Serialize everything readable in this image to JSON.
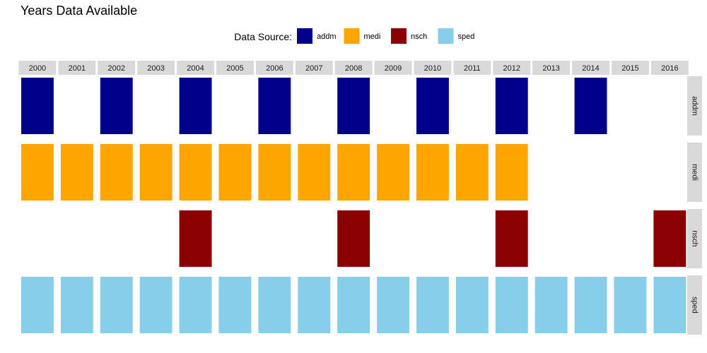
{
  "chart_data": {
    "type": "heatmap",
    "title": "Years Data Available",
    "legend": {
      "title": "Data Source:",
      "placement": "top-center",
      "entries": [
        "addm",
        "medi",
        "nsch",
        "sped"
      ]
    },
    "columns": [
      "2000",
      "2001",
      "2002",
      "2003",
      "2004",
      "2005",
      "2006",
      "2007",
      "2008",
      "2009",
      "2010",
      "2011",
      "2012",
      "2013",
      "2014",
      "2015",
      "2016"
    ],
    "rows": [
      {
        "name": "addm",
        "color": "#00008B",
        "years": [
          "2000",
          "2002",
          "2004",
          "2006",
          "2008",
          "2010",
          "2012",
          "2014"
        ]
      },
      {
        "name": "medi",
        "color": "#FFA500",
        "years": [
          "2000",
          "2001",
          "2002",
          "2003",
          "2004",
          "2005",
          "2006",
          "2007",
          "2008",
          "2009",
          "2010",
          "2011",
          "2012"
        ]
      },
      {
        "name": "nsch",
        "color": "#8B0000",
        "years": [
          "2004",
          "2008",
          "2012",
          "2016"
        ]
      },
      {
        "name": "sped",
        "color": "#87CEEB",
        "years": [
          "2000",
          "2001",
          "2002",
          "2003",
          "2004",
          "2005",
          "2006",
          "2007",
          "2008",
          "2009",
          "2010",
          "2011",
          "2012",
          "2013",
          "2014",
          "2015",
          "2016"
        ]
      }
    ],
    "grid": false
  }
}
